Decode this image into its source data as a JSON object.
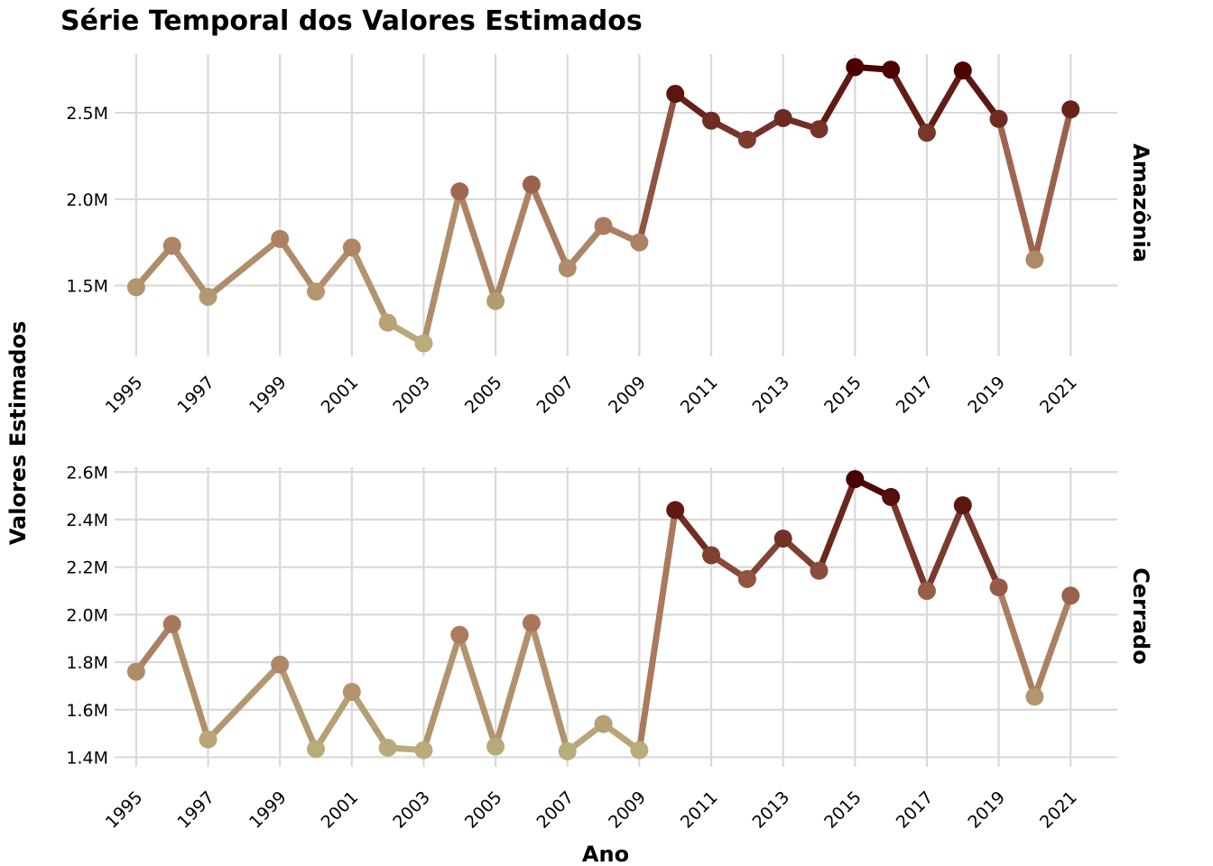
{
  "chart_data": {
    "type": "line",
    "title": "Série Temporal dos Valores Estimados",
    "xlabel": "Ano",
    "ylabel": "Valores Estimados",
    "x_ticks": [
      "1995",
      "1997",
      "1999",
      "2001",
      "2003",
      "2005",
      "2007",
      "2009",
      "2011",
      "2013",
      "2015",
      "2017",
      "2019",
      "2021"
    ],
    "xlim": [
      1994.4,
      2022.3
    ],
    "grid": true,
    "color_scale": {
      "low": "#b8ad7c",
      "mid": "#a8735a",
      "high": "#4a0000"
    },
    "panels": [
      {
        "name": "Amazônia",
        "ylim": [
          1090000,
          2840000
        ],
        "y_ticks": [
          1500000,
          2000000,
          2500000
        ],
        "y_tick_labels": [
          "1.5M",
          "2.0M",
          "2.5M"
        ],
        "x": [
          1995,
          1996,
          1997,
          1999,
          2000,
          2001,
          2002,
          2003,
          2004,
          2005,
          2006,
          2007,
          2008,
          2009,
          2010,
          2011,
          2012,
          2013,
          2014,
          2015,
          2016,
          2017,
          2018,
          2019,
          2020,
          2021
        ],
        "values": [
          1490000,
          1730000,
          1435000,
          1770000,
          1465000,
          1720000,
          1285000,
          1165000,
          2045000,
          1410000,
          2085000,
          1600000,
          1845000,
          1750000,
          2610000,
          2455000,
          2345000,
          2470000,
          2405000,
          2765000,
          2750000,
          2385000,
          2745000,
          2465000,
          1650000,
          2520000
        ]
      },
      {
        "name": "Cerrado",
        "ylim": [
          1360000,
          2620000
        ],
        "y_ticks": [
          1400000,
          1600000,
          1800000,
          2000000,
          2200000,
          2400000,
          2600000
        ],
        "y_tick_labels": [
          "1.4M",
          "1.6M",
          "1.8M",
          "2.0M",
          "2.2M",
          "2.4M",
          "2.6M"
        ],
        "x": [
          1995,
          1996,
          1997,
          1999,
          2000,
          2001,
          2002,
          2003,
          2004,
          2005,
          2006,
          2007,
          2008,
          2009,
          2010,
          2011,
          2012,
          2013,
          2014,
          2015,
          2016,
          2017,
          2018,
          2019,
          2020,
          2021
        ],
        "values": [
          1760000,
          1960000,
          1475000,
          1790000,
          1435000,
          1675000,
          1440000,
          1430000,
          1915000,
          1445000,
          1965000,
          1425000,
          1540000,
          1430000,
          2440000,
          2250000,
          2150000,
          2320000,
          2185000,
          2570000,
          2495000,
          2100000,
          2460000,
          2115000,
          1655000,
          2080000
        ]
      }
    ]
  }
}
